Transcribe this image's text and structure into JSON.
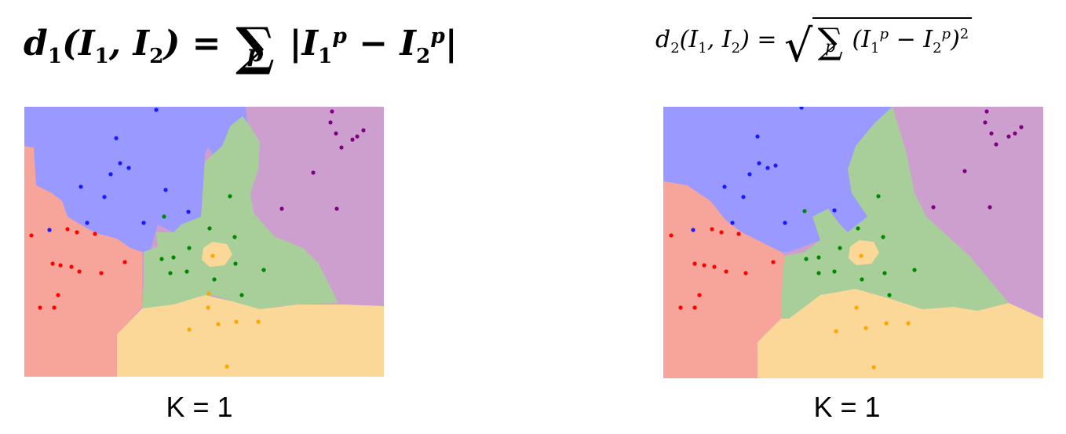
{
  "left": {
    "formula_prefix": "d",
    "formula_sub": "1",
    "formula_args": "(I",
    "formula_body": "|I",
    "k_label": "K = 1"
  },
  "right": {
    "formula_prefix": "d",
    "formula_sub": "2",
    "k_label": "K = 1"
  },
  "colors": {
    "blue_region": "#9999ff",
    "red_region": "#f7a59a",
    "green_region": "#a8cf9a",
    "purple_region": "#cc9fce",
    "orange_region": "#fbd897",
    "blue_point": "#1a1aff",
    "red_point": "#ff0000",
    "green_point": "#008800",
    "purple_point": "#800080",
    "orange_point": "#ffa500"
  }
}
